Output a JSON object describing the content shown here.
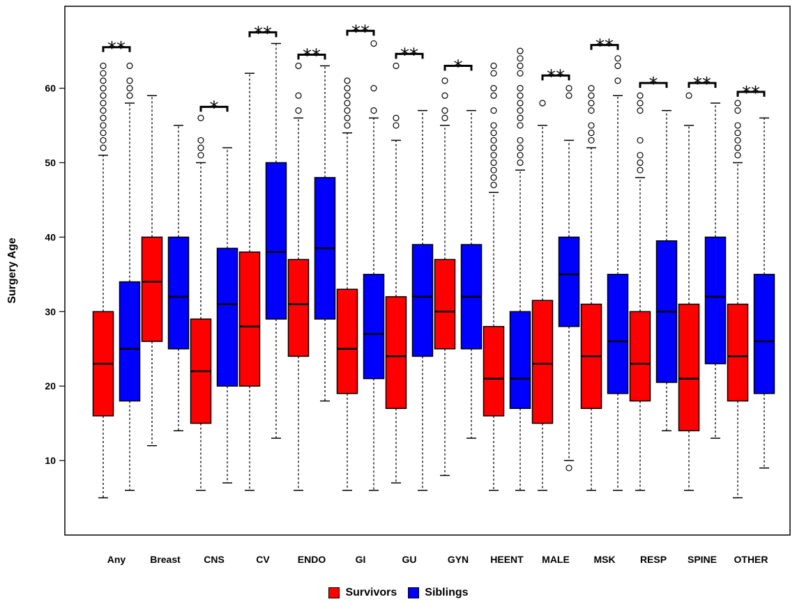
{
  "chart_data": {
    "type": "box",
    "ylabel": "Surgery Age",
    "yticks": [
      10,
      20,
      30,
      40,
      50,
      60
    ],
    "ylim": [
      0,
      71
    ],
    "categories": [
      "Any",
      "Breast",
      "CNS",
      "CV",
      "ENDO",
      "GI",
      "GU",
      "GYN",
      "HEENT",
      "MALE",
      "MSK",
      "RESP",
      "SPINE",
      "OTHER"
    ],
    "series": [
      {
        "name": "Survivors",
        "color": "#ff0000"
      },
      {
        "name": "Siblings",
        "color": "#0000ff"
      }
    ],
    "boxes": [
      {
        "category": "Any",
        "series": "Survivors",
        "min": 5,
        "q1": 16,
        "median": 23,
        "q3": 30,
        "max": 51,
        "outliers": [
          52,
          53,
          54,
          55,
          56,
          57,
          58,
          59,
          60,
          61,
          62,
          63
        ]
      },
      {
        "category": "Any",
        "series": "Siblings",
        "min": 6,
        "q1": 18,
        "median": 25,
        "q3": 34,
        "max": 58,
        "outliers": [
          59,
          60,
          61,
          63
        ]
      },
      {
        "category": "Breast",
        "series": "Survivors",
        "min": 12,
        "q1": 26,
        "median": 34,
        "q3": 40,
        "max": 59,
        "outliers": []
      },
      {
        "category": "Breast",
        "series": "Siblings",
        "min": 14,
        "q1": 25,
        "median": 32,
        "q3": 40,
        "max": 55,
        "outliers": []
      },
      {
        "category": "CNS",
        "series": "Survivors",
        "min": 6,
        "q1": 15,
        "median": 22,
        "q3": 29,
        "max": 50,
        "outliers": [
          51,
          52,
          53,
          56
        ]
      },
      {
        "category": "CNS",
        "series": "Siblings",
        "min": 7,
        "q1": 20,
        "median": 31,
        "q3": 38.5,
        "max": 52,
        "outliers": []
      },
      {
        "category": "CV",
        "series": "Survivors",
        "min": 6,
        "q1": 20,
        "median": 28,
        "q3": 38,
        "max": 62,
        "outliers": []
      },
      {
        "category": "CV",
        "series": "Siblings",
        "min": 13,
        "q1": 29,
        "median": 38,
        "q3": 50,
        "max": 66,
        "outliers": []
      },
      {
        "category": "ENDO",
        "series": "Survivors",
        "min": 6,
        "q1": 24,
        "median": 31,
        "q3": 37,
        "max": 56,
        "outliers": [
          57,
          59,
          63
        ]
      },
      {
        "category": "ENDO",
        "series": "Siblings",
        "min": 18,
        "q1": 29,
        "median": 38.5,
        "q3": 48,
        "max": 63,
        "outliers": []
      },
      {
        "category": "GI",
        "series": "Survivors",
        "min": 6,
        "q1": 19,
        "median": 25,
        "q3": 33,
        "max": 54,
        "outliers": [
          55,
          56,
          57,
          58,
          59,
          60,
          61
        ]
      },
      {
        "category": "GI",
        "series": "Siblings",
        "min": 6,
        "q1": 21,
        "median": 27,
        "q3": 35,
        "max": 56,
        "outliers": [
          57,
          60,
          66
        ]
      },
      {
        "category": "GU",
        "series": "Survivors",
        "min": 7,
        "q1": 17,
        "median": 24,
        "q3": 32,
        "max": 53,
        "outliers": [
          55,
          56,
          63
        ]
      },
      {
        "category": "GU",
        "series": "Siblings",
        "min": 6,
        "q1": 24,
        "median": 32,
        "q3": 39,
        "max": 57,
        "outliers": []
      },
      {
        "category": "GYN",
        "series": "Survivors",
        "min": 8,
        "q1": 25,
        "median": 30,
        "q3": 37,
        "max": 55,
        "outliers": [
          56,
          57,
          59,
          61
        ]
      },
      {
        "category": "GYN",
        "series": "Siblings",
        "min": 13,
        "q1": 25,
        "median": 32,
        "q3": 39,
        "max": 57,
        "outliers": []
      },
      {
        "category": "HEENT",
        "series": "Survivors",
        "min": 6,
        "q1": 16,
        "median": 21,
        "q3": 28,
        "max": 46,
        "outliers": [
          47,
          48,
          49,
          50,
          51,
          52,
          53,
          54,
          55,
          57,
          59,
          60,
          62,
          63
        ]
      },
      {
        "category": "HEENT",
        "series": "Siblings",
        "min": 6,
        "q1": 17,
        "median": 21,
        "q3": 30,
        "max": 49,
        "outliers": [
          50,
          51,
          52,
          53,
          55,
          56,
          57,
          58,
          59,
          60,
          62,
          63,
          64,
          65
        ]
      },
      {
        "category": "MALE",
        "series": "Survivors",
        "min": 6,
        "q1": 15,
        "median": 23,
        "q3": 31.5,
        "max": 55,
        "outliers": [
          58
        ]
      },
      {
        "category": "MALE",
        "series": "Siblings",
        "min": 10,
        "q1": 28,
        "median": 35,
        "q3": 40,
        "max": 53,
        "outliers": [
          9,
          59,
          60
        ]
      },
      {
        "category": "MSK",
        "series": "Survivors",
        "min": 6,
        "q1": 17,
        "median": 24,
        "q3": 31,
        "max": 52,
        "outliers": [
          53,
          54,
          55,
          57,
          58,
          59,
          60
        ]
      },
      {
        "category": "MSK",
        "series": "Siblings",
        "min": 6,
        "q1": 19,
        "median": 26,
        "q3": 35,
        "max": 59,
        "outliers": [
          61,
          63,
          64
        ]
      },
      {
        "category": "RESP",
        "series": "Survivors",
        "min": 6,
        "q1": 18,
        "median": 23,
        "q3": 30,
        "max": 48,
        "outliers": [
          49,
          50,
          51,
          53,
          57,
          58,
          59
        ]
      },
      {
        "category": "RESP",
        "series": "Siblings",
        "min": 14,
        "q1": 20.5,
        "median": 30,
        "q3": 39.5,
        "max": 57,
        "outliers": []
      },
      {
        "category": "SPINE",
        "series": "Survivors",
        "min": 6,
        "q1": 14,
        "median": 21,
        "q3": 31,
        "max": 55,
        "outliers": [
          59
        ]
      },
      {
        "category": "SPINE",
        "series": "Siblings",
        "min": 13,
        "q1": 23,
        "median": 32,
        "q3": 40,
        "max": 58,
        "outliers": []
      },
      {
        "category": "OTHER",
        "series": "Survivors",
        "min": 5,
        "q1": 18,
        "median": 24,
        "q3": 31,
        "max": 50,
        "outliers": [
          51,
          52,
          53,
          54,
          55,
          57,
          58
        ]
      },
      {
        "category": "OTHER",
        "series": "Siblings",
        "min": 9,
        "q1": 19,
        "median": 26,
        "q3": 35,
        "max": 56,
        "outliers": []
      }
    ],
    "significance": [
      {
        "category": "Any",
        "label": "**",
        "level": 65.5
      },
      {
        "category": "CNS",
        "label": "*",
        "level": 57.5
      },
      {
        "category": "CV",
        "label": "**",
        "level": 67.5
      },
      {
        "category": "ENDO",
        "label": "**",
        "level": 64.5
      },
      {
        "category": "GI",
        "label": "**",
        "level": 67.7
      },
      {
        "category": "GU",
        "label": "**",
        "level": 64.6
      },
      {
        "category": "GYN",
        "label": "*",
        "level": 63
      },
      {
        "category": "MALE",
        "label": "**",
        "level": 61.7
      },
      {
        "category": "MSK",
        "label": "**",
        "level": 65.8
      },
      {
        "category": "RESP",
        "label": "*",
        "level": 60.7
      },
      {
        "category": "SPINE",
        "label": "**",
        "level": 60.7
      },
      {
        "category": "OTHER",
        "label": "**",
        "level": 59.5
      }
    ]
  },
  "legend": {
    "items": [
      {
        "label": "Survivors",
        "color": "#ff0000"
      },
      {
        "label": "Siblings",
        "color": "#0000ff"
      }
    ]
  }
}
